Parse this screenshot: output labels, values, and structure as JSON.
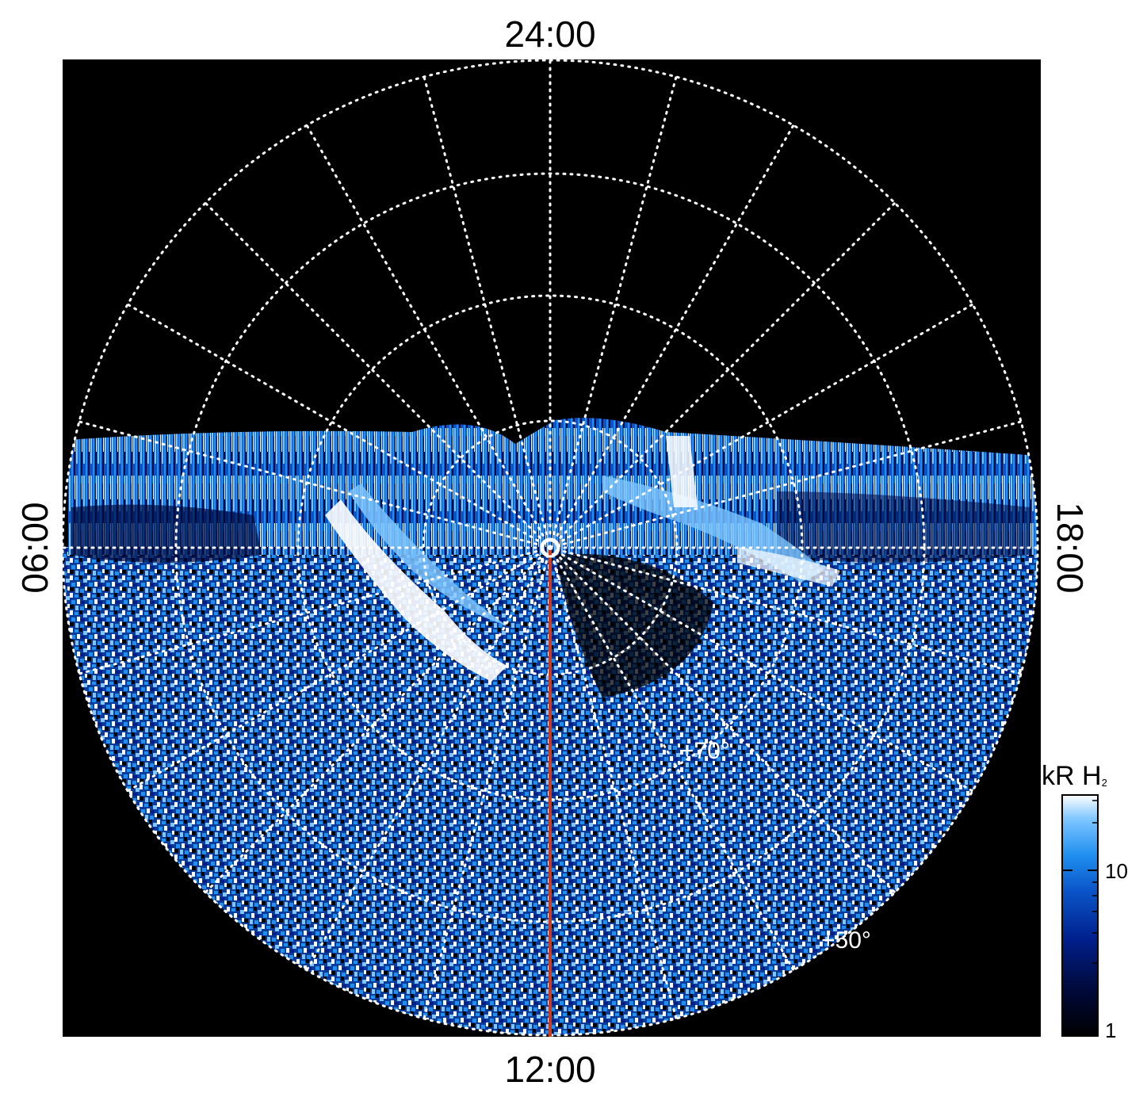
{
  "figure": {
    "local_time_labels": {
      "top": "24:00",
      "bottom": "12:00",
      "left": "06:00",
      "right": "18:00"
    },
    "latitude_labels": [
      "+70°",
      "+50°"
    ],
    "colorbar": {
      "title": "kR H",
      "title_subscript": "2",
      "scale": "log",
      "range": [
        1,
        30
      ],
      "ticks": [
        {
          "value": 10,
          "label": "10"
        },
        {
          "value": 1,
          "label": "1"
        }
      ],
      "colors": [
        "#000000",
        "#000a3c",
        "#001f8c",
        "#0a54c8",
        "#1f8ff0",
        "#7ec6ff",
        "#ffffff"
      ]
    },
    "colors": {
      "background": "#000000",
      "grid": "#ffffff",
      "meridian_line": "#d23a1a",
      "emission": "#1f8ff0"
    },
    "description_visible": "polar projection of auroral H2 emission with dotted latitude/local-time grid"
  }
}
